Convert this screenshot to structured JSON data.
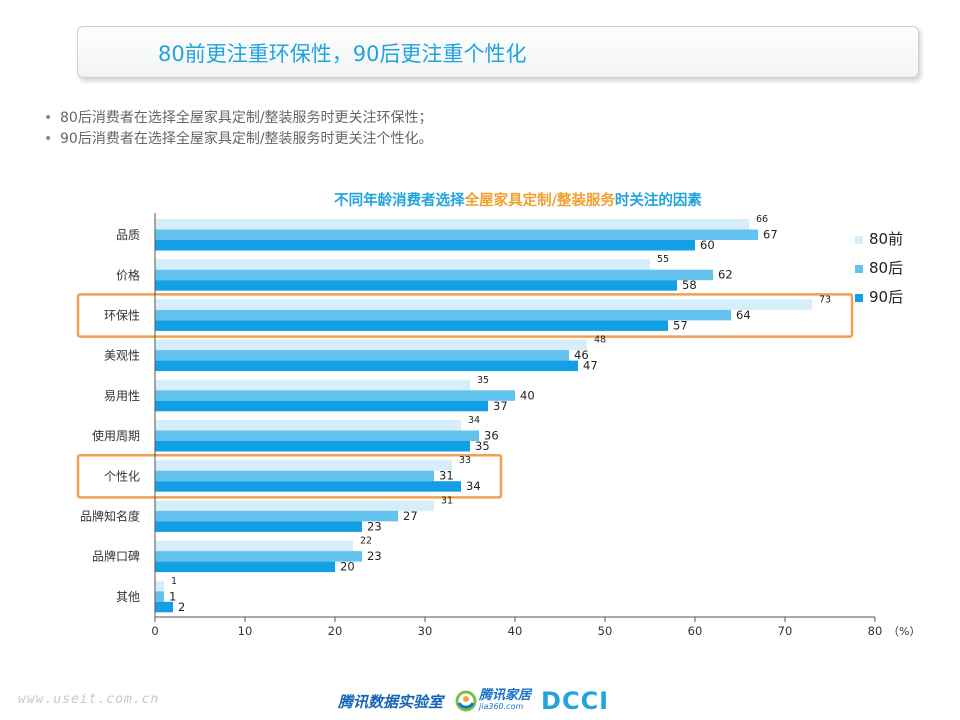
{
  "slide": {
    "title": "80前更注重环保性，90后更注重个性化",
    "bullets": [
      "80后消费者在选择全屋家具定制/整装服务时更关注环保性；",
      "90后消费者在选择全屋家具定制/整装服务时更关注个性化。"
    ],
    "footer": {
      "url": "www.useit.com.cn",
      "lab": "腾讯数据实验室",
      "jia_cn": "腾讯家居",
      "jia_url": "jia360.com",
      "dcci": "DCCI"
    }
  },
  "chart_data": {
    "type": "bar",
    "orientation": "horizontal",
    "title_parts": [
      {
        "text": "不同年龄消费者选择",
        "color": "#21a3dc"
      },
      {
        "text": "全屋家具定制/整装服务",
        "color": "#f0a030"
      },
      {
        "text": "时关注的因素",
        "color": "#21a3dc"
      }
    ],
    "categories": [
      "品质",
      "价格",
      "环保性",
      "美观性",
      "易用性",
      "使用周期",
      "个性化",
      "品牌知名度",
      "品牌口碑",
      "其他"
    ],
    "series": [
      {
        "name": "80前",
        "color": "#d6eefa",
        "values": [
          66,
          55,
          73,
          48,
          35,
          34,
          33,
          31,
          22,
          1
        ]
      },
      {
        "name": "80后",
        "color": "#63c3ee",
        "values": [
          67,
          62,
          64,
          46,
          40,
          36,
          31,
          27,
          23,
          1
        ]
      },
      {
        "name": "90后",
        "color": "#129fe4",
        "values": [
          60,
          58,
          57,
          47,
          37,
          35,
          34,
          23,
          20,
          2
        ]
      }
    ],
    "xlim": [
      0,
      80
    ],
    "xticks": [
      0,
      10,
      20,
      30,
      40,
      50,
      60,
      70,
      80
    ],
    "x_unit": "（%）",
    "highlighted_categories": [
      "环保性",
      "个性化"
    ],
    "highlight_color": "#f0a050",
    "legend_position": "right"
  }
}
